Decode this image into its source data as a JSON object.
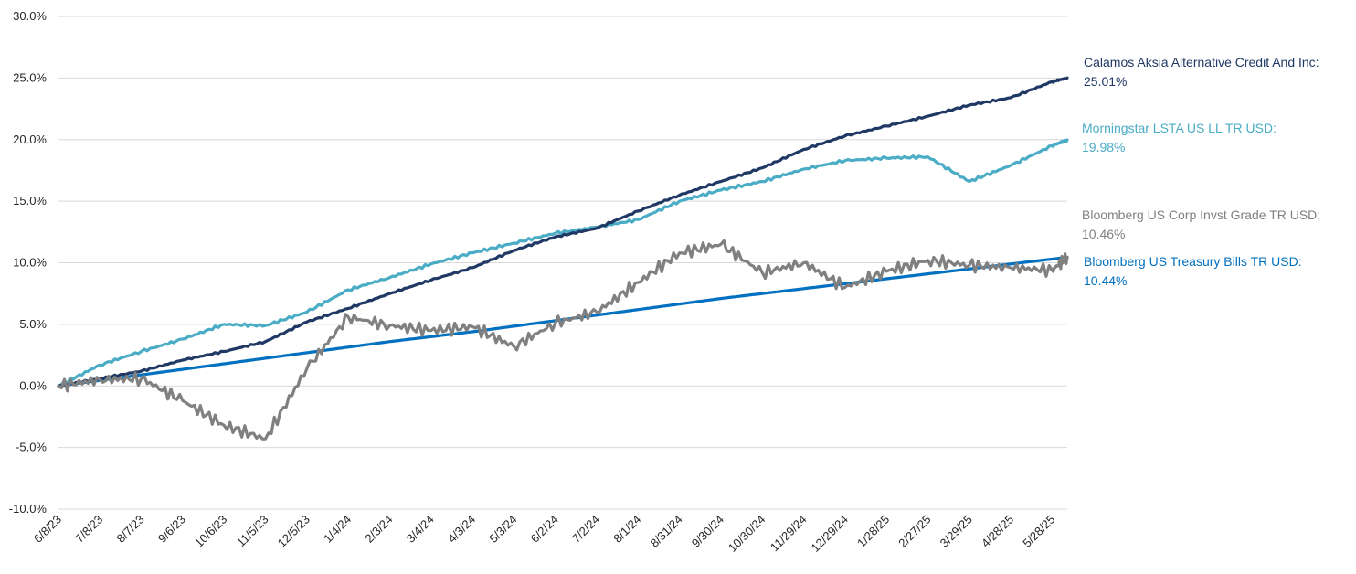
{
  "chart_data": {
    "type": "line",
    "title": "",
    "xlabel": "",
    "ylabel": "",
    "ylim": [
      -10,
      30
    ],
    "yticks": [
      -10,
      -5,
      0,
      5,
      10,
      15,
      20,
      25,
      30
    ],
    "ytick_labels": [
      "-10.0%",
      "-5.0%",
      "0.0%",
      "5.0%",
      "10.0%",
      "15.0%",
      "20.0%",
      "25.0%",
      "30.0%"
    ],
    "x_tick_labels": [
      "6/8/23",
      "7/8/23",
      "8/7/23",
      "9/6/23",
      "10/6/23",
      "11/5/23",
      "12/5/23",
      "1/4/24",
      "2/3/24",
      "3/4/24",
      "4/3/24",
      "5/3/24",
      "6/2/24",
      "7/2/24",
      "8/1/24",
      "8/31/24",
      "9/30/24",
      "10/30/24",
      "11/29/24",
      "12/29/24",
      "1/28/25",
      "2/27/25",
      "3/29/25",
      "4/28/25",
      "5/28/25"
    ],
    "x_range": [
      "6/8/23",
      "6/8/25"
    ],
    "grid": "horizontal",
    "legend": "end-of-line labels",
    "x": [
      "6/8/23",
      "7/8/23",
      "8/7/23",
      "9/6/23",
      "10/6/23",
      "11/5/23",
      "12/5/23",
      "1/4/24",
      "2/3/24",
      "3/4/24",
      "4/3/24",
      "5/3/24",
      "6/2/24",
      "7/2/24",
      "8/1/24",
      "8/31/24",
      "9/30/24",
      "10/30/24",
      "11/29/24",
      "12/29/24",
      "1/28/25",
      "2/27/25",
      "3/29/25",
      "4/28/25",
      "5/28/25",
      "6/8/25"
    ],
    "series": [
      {
        "name": "Calamos Aksia Alternative Credit And Inc:",
        "end_value_label": "25.01%",
        "color": "#1F3864",
        "values": [
          0.0,
          0.6,
          1.2,
          2.1,
          2.8,
          3.6,
          5.2,
          6.3,
          7.5,
          8.6,
          9.6,
          11.0,
          12.1,
          12.8,
          14.2,
          15.5,
          16.6,
          17.7,
          19.2,
          20.3,
          21.1,
          21.9,
          22.8,
          23.4,
          24.7,
          25.01
        ]
      },
      {
        "name": "Morningstar LSTA US LL TR USD:",
        "end_value_label": "19.98%",
        "color": "#4BACC6",
        "values": [
          0.0,
          1.7,
          2.8,
          3.8,
          5.0,
          4.9,
          6.0,
          7.8,
          8.8,
          9.9,
          10.8,
          11.6,
          12.4,
          12.9,
          13.5,
          15.0,
          15.9,
          16.6,
          17.6,
          18.3,
          18.5,
          18.6,
          16.6,
          17.9,
          19.5,
          19.98
        ]
      },
      {
        "name": "Bloomberg US Corp Invst Grade TR USD:",
        "end_value_label": "10.46%",
        "color": "#808080",
        "values": [
          0.0,
          0.5,
          0.6,
          -1.2,
          -3.2,
          -4.3,
          1.4,
          5.6,
          4.9,
          4.5,
          4.8,
          3.2,
          5.1,
          6.0,
          8.4,
          10.8,
          11.5,
          9.2,
          10.0,
          8.0,
          9.3,
          10.2,
          9.8,
          9.6,
          9.4,
          10.46
        ]
      },
      {
        "name": "Bloomberg US Treasury Bills TR USD:",
        "end_value_label": "10.44%",
        "color": "#0070C0",
        "values": [
          0.0,
          0.45,
          0.9,
          1.35,
          1.8,
          2.25,
          2.7,
          3.15,
          3.6,
          4.0,
          4.4,
          4.85,
          5.3,
          5.75,
          6.2,
          6.65,
          7.1,
          7.5,
          7.9,
          8.3,
          8.7,
          9.1,
          9.5,
          9.9,
          10.3,
          10.44
        ]
      }
    ]
  }
}
